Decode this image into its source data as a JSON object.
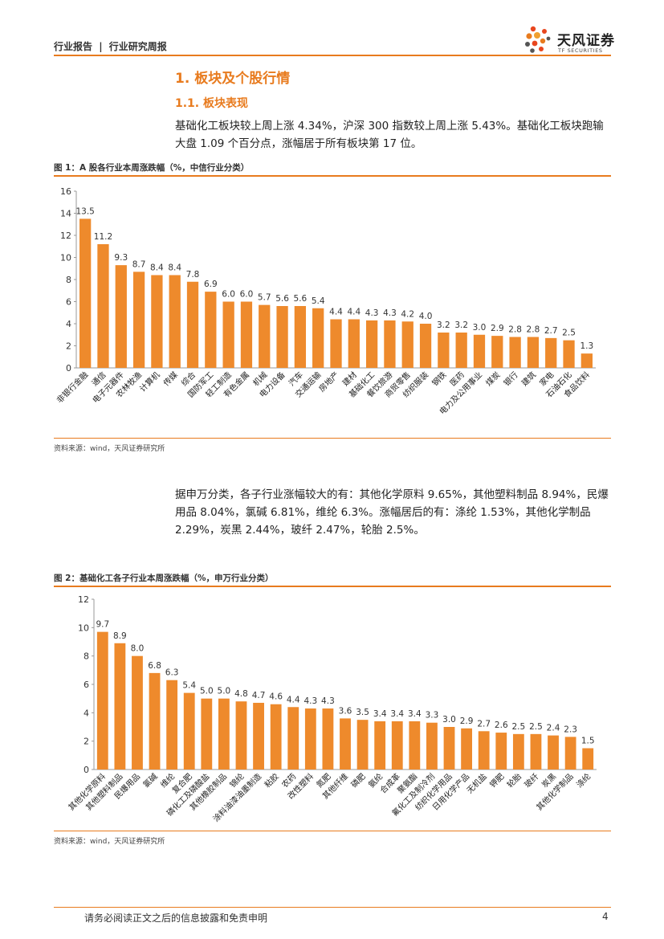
{
  "header": {
    "category": "行业报告",
    "separator": "|",
    "report_type": "行业研究周报",
    "brand_cn": "天风证券",
    "brand_en": "TF SECURITIES",
    "accent_color": "#e87b1e"
  },
  "section": {
    "h1": "1. 板块及个股行情",
    "h2": "1.1. 板块表现",
    "para1": "基础化工板块较上周上涨 4.34%，沪深 300 指数较上周上涨 5.43%。基础化工板块跑输大盘 1.09 个百分点，涨幅居于所有板块第 17 位。",
    "para2": "据申万分类，各子行业涨幅较大的有：其他化学原料 9.65%，其他塑料制品 8.94%，民爆用品 8.04%，氯碱 6.81%，维纶 6.3%。涨幅居后的有：涤纶 1.53%，其他化学制品 2.29%，炭黑 2.44%，玻纤 2.47%，轮胎 2.5%。"
  },
  "figure1": {
    "title": "图 1：A 股各行业本周涨跌幅（%，中信行业分类）",
    "source": "资料来源：wind，天风证券研究所"
  },
  "figure2": {
    "title": "图 2：基础化工各子行业本周涨跌幅（%，申万行业分类）",
    "source": "资料来源：wind，天风证券研究所"
  },
  "chart_data": [
    {
      "type": "bar",
      "title": "图 1：A 股各行业本周涨跌幅（%，中信行业分类）",
      "bar_color": "#ee8a2c",
      "ylim": [
        0,
        16
      ],
      "yticks": [
        0,
        2,
        4,
        6,
        8,
        10,
        12,
        14,
        16
      ],
      "categories": [
        "非银行金融",
        "通信",
        "电子元器件",
        "农林牧渔",
        "计算机",
        "传媒",
        "综合",
        "国防军工",
        "轻工制造",
        "有色金属",
        "机械",
        "电力设备",
        "汽车",
        "交通运输",
        "房地产",
        "建材",
        "基础化工",
        "餐饮旅游",
        "商贸零售",
        "纺织服装",
        "钢铁",
        "医药",
        "电力及公用事业",
        "煤炭",
        "银行",
        "建筑",
        "家电",
        "石油石化",
        "食品饮料"
      ],
      "values": [
        13.5,
        11.2,
        9.3,
        8.7,
        8.4,
        8.4,
        7.8,
        6.9,
        6.0,
        6.0,
        5.7,
        5.6,
        5.6,
        5.4,
        4.4,
        4.4,
        4.3,
        4.3,
        4.2,
        4.0,
        3.2,
        3.2,
        3.0,
        2.9,
        2.8,
        2.8,
        2.7,
        2.5,
        1.3
      ],
      "labels": [
        "13.5",
        "11.2",
        "9.3",
        "8.7",
        "8.4",
        "8.4",
        "7.8",
        "6.9",
        "6.0",
        "6.0",
        "5.7",
        "5.6",
        "5.6",
        "5.4",
        "4.4",
        "4.4",
        "4.3",
        "4.3",
        "4.2",
        "4.0",
        "3.2",
        "3.2",
        "3.0",
        "2.9",
        "2.8",
        "2.8",
        "2.7",
        "2.5",
        "1.3"
      ]
    },
    {
      "type": "bar",
      "title": "图 2：基础化工各子行业本周涨跌幅（%，申万行业分类）",
      "bar_color": "#ee8a2c",
      "ylim": [
        0,
        12
      ],
      "yticks": [
        0,
        2,
        4,
        6,
        8,
        10,
        12
      ],
      "categories": [
        "其他化学原料",
        "其他塑料制品",
        "民爆用品",
        "氯碱",
        "维纶",
        "复合肥",
        "磷化工及磷酸盐",
        "其他橡胶制品",
        "锦纶",
        "涂料油漆油墨制造",
        "粘胶",
        "农药",
        "改性塑料",
        "氮肥",
        "其他纤维",
        "磷肥",
        "氨纶",
        "合成革",
        "聚氨酯",
        "氟化工及制冷剂",
        "纺织化学用品",
        "日用化学产品",
        "无机盐",
        "钾肥",
        "轮胎",
        "玻纤",
        "炭黑",
        "其他化学制品",
        "涤纶"
      ],
      "values": [
        9.7,
        8.9,
        8.0,
        6.8,
        6.3,
        5.4,
        5.0,
        5.0,
        4.8,
        4.7,
        4.6,
        4.4,
        4.3,
        4.3,
        3.6,
        3.5,
        3.4,
        3.4,
        3.4,
        3.3,
        3.0,
        2.9,
        2.7,
        2.6,
        2.5,
        2.5,
        2.4,
        2.3,
        1.5
      ],
      "labels": [
        "9.7",
        "8.9",
        "8.0",
        "6.8",
        "6.3",
        "5.4",
        "5.0",
        "5.0",
        "4.8",
        "4.7",
        "4.6",
        "4.4",
        "4.3",
        "4.3",
        "3.6",
        "3.5",
        "3.4",
        "3.4",
        "3.4",
        "3.3",
        "3.0",
        "2.9",
        "2.7",
        "2.6",
        "2.5",
        "2.5",
        "2.4",
        "2.3",
        "1.5"
      ]
    }
  ],
  "footer": {
    "disclaimer": "请务必阅读正文之后的信息披露和免责申明",
    "page": "4"
  }
}
